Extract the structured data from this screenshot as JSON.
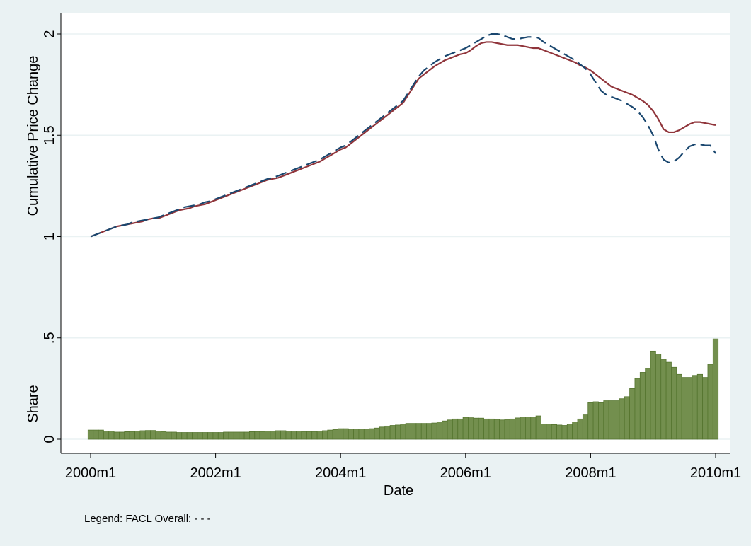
{
  "chart_data": {
    "type": "line",
    "y_axis_titles": [
      "Cumulative Price Change",
      "Share"
    ],
    "xlabel": "Date",
    "note": "Legend: FACL Overall: - - -",
    "x": [
      "2000m1",
      "2000m2",
      "2000m3",
      "2000m4",
      "2000m5",
      "2000m6",
      "2000m7",
      "2000m8",
      "2000m9",
      "2000m10",
      "2000m11",
      "2000m12",
      "2001m1",
      "2001m2",
      "2001m3",
      "2001m4",
      "2001m5",
      "2001m6",
      "2001m7",
      "2001m8",
      "2001m9",
      "2001m10",
      "2001m11",
      "2001m12",
      "2002m1",
      "2002m2",
      "2002m3",
      "2002m4",
      "2002m5",
      "2002m6",
      "2002m7",
      "2002m8",
      "2002m9",
      "2002m10",
      "2002m11",
      "2002m12",
      "2003m1",
      "2003m2",
      "2003m3",
      "2003m4",
      "2003m5",
      "2003m6",
      "2003m7",
      "2003m8",
      "2003m9",
      "2003m10",
      "2003m11",
      "2003m12",
      "2004m1",
      "2004m2",
      "2004m3",
      "2004m4",
      "2004m5",
      "2004m6",
      "2004m7",
      "2004m8",
      "2004m9",
      "2004m10",
      "2004m11",
      "2004m12",
      "2005m1",
      "2005m2",
      "2005m3",
      "2005m4",
      "2005m5",
      "2005m6",
      "2005m7",
      "2005m8",
      "2005m9",
      "2005m10",
      "2005m11",
      "2005m12",
      "2006m1",
      "2006m2",
      "2006m3",
      "2006m4",
      "2006m5",
      "2006m6",
      "2006m7",
      "2006m8",
      "2006m9",
      "2006m10",
      "2006m11",
      "2006m12",
      "2007m1",
      "2007m2",
      "2007m3",
      "2007m4",
      "2007m5",
      "2007m6",
      "2007m7",
      "2007m8",
      "2007m9",
      "2007m10",
      "2007m11",
      "2007m12",
      "2008m1",
      "2008m2",
      "2008m3",
      "2008m4",
      "2008m5",
      "2008m6",
      "2008m7",
      "2008m8",
      "2008m9",
      "2008m10",
      "2008m11",
      "2008m12",
      "2009m1",
      "2009m2",
      "2009m3",
      "2009m4",
      "2009m5",
      "2009m6",
      "2009m7",
      "2009m8",
      "2009m9",
      "2009m10",
      "2009m11",
      "2009m12",
      "2010m1"
    ],
    "series": [
      {
        "type": "bar",
        "color": "#738f4e",
        "values": [
          0.045,
          0.045,
          0.045,
          0.04,
          0.04,
          0.035,
          0.035,
          0.037,
          0.038,
          0.04,
          0.042,
          0.043,
          0.043,
          0.04,
          0.038,
          0.035,
          0.035,
          0.033,
          0.033,
          0.033,
          0.033,
          0.033,
          0.033,
          0.033,
          0.033,
          0.033,
          0.035,
          0.035,
          0.035,
          0.035,
          0.035,
          0.037,
          0.038,
          0.038,
          0.04,
          0.04,
          0.042,
          0.042,
          0.04,
          0.04,
          0.04,
          0.038,
          0.038,
          0.038,
          0.04,
          0.042,
          0.045,
          0.048,
          0.052,
          0.052,
          0.05,
          0.05,
          0.05,
          0.05,
          0.052,
          0.055,
          0.06,
          0.065,
          0.068,
          0.07,
          0.075,
          0.078,
          0.078,
          0.078,
          0.078,
          0.078,
          0.08,
          0.085,
          0.09,
          0.095,
          0.1,
          0.1,
          0.108,
          0.106,
          0.104,
          0.104,
          0.1,
          0.1,
          0.098,
          0.095,
          0.098,
          0.1,
          0.105,
          0.11,
          0.11,
          0.11,
          0.115,
          0.075,
          0.075,
          0.072,
          0.07,
          0.068,
          0.075,
          0.085,
          0.1,
          0.12,
          0.18,
          0.185,
          0.18,
          0.19,
          0.19,
          0.19,
          0.2,
          0.21,
          0.25,
          0.3,
          0.33,
          0.35,
          0.435,
          0.42,
          0.395,
          0.38,
          0.355,
          0.32,
          0.305,
          0.305,
          0.315,
          0.32,
          0.305,
          0.37,
          0.495
        ]
      },
      {
        "type": "line",
        "color": "#90353b",
        "dash": false,
        "values": [
          1.0,
          1.01,
          1.02,
          1.03,
          1.04,
          1.05,
          1.055,
          1.06,
          1.065,
          1.07,
          1.075,
          1.085,
          1.09,
          1.09,
          1.1,
          1.11,
          1.12,
          1.13,
          1.135,
          1.14,
          1.15,
          1.155,
          1.16,
          1.17,
          1.18,
          1.19,
          1.2,
          1.21,
          1.22,
          1.23,
          1.24,
          1.25,
          1.26,
          1.27,
          1.28,
          1.285,
          1.29,
          1.3,
          1.31,
          1.32,
          1.33,
          1.34,
          1.35,
          1.36,
          1.37,
          1.385,
          1.4,
          1.415,
          1.43,
          1.44,
          1.46,
          1.48,
          1.5,
          1.52,
          1.54,
          1.56,
          1.58,
          1.6,
          1.62,
          1.64,
          1.66,
          1.7,
          1.74,
          1.78,
          1.8,
          1.82,
          1.84,
          1.855,
          1.87,
          1.88,
          1.89,
          1.9,
          1.905,
          1.92,
          1.94,
          1.955,
          1.96,
          1.96,
          1.955,
          1.95,
          1.945,
          1.945,
          1.945,
          1.94,
          1.935,
          1.93,
          1.93,
          1.92,
          1.91,
          1.9,
          1.89,
          1.88,
          1.87,
          1.86,
          1.845,
          1.835,
          1.82,
          1.8,
          1.78,
          1.76,
          1.74,
          1.73,
          1.72,
          1.71,
          1.7,
          1.685,
          1.67,
          1.65,
          1.62,
          1.58,
          1.53,
          1.515,
          1.515,
          1.525,
          1.54,
          1.555,
          1.565,
          1.565,
          1.56,
          1.555,
          1.55
        ]
      },
      {
        "type": "line",
        "color": "#1a476f",
        "dash": true,
        "values": [
          1.0,
          1.01,
          1.02,
          1.03,
          1.04,
          1.05,
          1.055,
          1.06,
          1.07,
          1.075,
          1.08,
          1.085,
          1.09,
          1.095,
          1.105,
          1.115,
          1.125,
          1.135,
          1.145,
          1.15,
          1.155,
          1.16,
          1.17,
          1.175,
          1.185,
          1.195,
          1.205,
          1.215,
          1.225,
          1.235,
          1.245,
          1.255,
          1.265,
          1.275,
          1.285,
          1.29,
          1.3,
          1.31,
          1.32,
          1.33,
          1.34,
          1.35,
          1.36,
          1.37,
          1.38,
          1.395,
          1.41,
          1.425,
          1.44,
          1.45,
          1.47,
          1.49,
          1.51,
          1.53,
          1.55,
          1.57,
          1.59,
          1.61,
          1.63,
          1.65,
          1.67,
          1.71,
          1.75,
          1.79,
          1.82,
          1.84,
          1.86,
          1.875,
          1.89,
          1.9,
          1.91,
          1.92,
          1.93,
          1.945,
          1.96,
          1.975,
          1.99,
          2.0,
          2.0,
          1.995,
          1.985,
          1.975,
          1.975,
          1.98,
          1.985,
          1.985,
          1.98,
          1.96,
          1.945,
          1.93,
          1.915,
          1.9,
          1.885,
          1.87,
          1.85,
          1.83,
          1.8,
          1.76,
          1.72,
          1.7,
          1.69,
          1.68,
          1.67,
          1.655,
          1.64,
          1.62,
          1.59,
          1.55,
          1.5,
          1.43,
          1.38,
          1.365,
          1.37,
          1.39,
          1.42,
          1.445,
          1.455,
          1.455,
          1.45,
          1.45,
          1.41
        ]
      }
    ],
    "ylim": [
      0,
      2
    ],
    "yticks": [
      0,
      {
        "value": 0.5,
        "label": ".5"
      },
      1,
      1.5,
      2
    ],
    "grid": true
  }
}
